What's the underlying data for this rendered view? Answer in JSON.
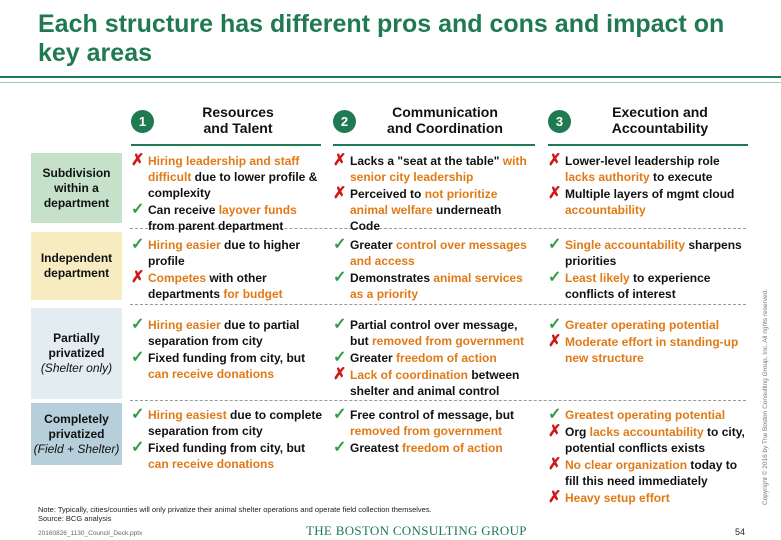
{
  "title": "Each structure has different pros and cons and impact on key areas",
  "colors": {
    "accent": "#1f7a52",
    "pro": "#2ea043",
    "con": "#d01818",
    "highlight": "#e07a16"
  },
  "columns": [
    {
      "number": "1",
      "title_line1": "Resources",
      "title_line2": "and Talent"
    },
    {
      "number": "2",
      "title_line1": "Communication",
      "title_line2": "and Coordination"
    },
    {
      "number": "3",
      "title_line1": "Execution and",
      "title_line2": "Accountability"
    }
  ],
  "rows": [
    {
      "label_line1": "Subdivision",
      "label_line2": "within a",
      "label_line3": "department",
      "bg": "#c6e1c9",
      "cells": [
        [
          {
            "mark": "✗",
            "type": "no",
            "hl": "Hiring leadership and staff difficult",
            "rest": " due to lower profile & complexity"
          },
          {
            "mark": "✓",
            "type": "ok",
            "pre": "Can receive ",
            "hl": "layover funds",
            "rest": " from parent department"
          }
        ],
        [
          {
            "mark": "✗",
            "type": "no",
            "pre": "Lacks a \"seat at the table\" ",
            "hl": "with senior  city leadership"
          },
          {
            "mark": "✗",
            "type": "no",
            "pre": "Perceived to ",
            "hl": "not prioritize animal welfare",
            "rest": " underneath Code"
          }
        ],
        [
          {
            "mark": "✗",
            "type": "no",
            "pre": "Lower-level leadership role ",
            "hl": "lacks authority",
            "rest": " to execute"
          },
          {
            "mark": "✗",
            "type": "no",
            "pre": "Multiple layers of mgmt cloud ",
            "hl": "accountability"
          }
        ]
      ]
    },
    {
      "label_line1": "Independent",
      "label_line2": "department",
      "bg": "#f7ecc0",
      "cells": [
        [
          {
            "mark": "✓",
            "type": "ok",
            "hl": "Hiring easier",
            "rest": " due to higher profile"
          },
          {
            "mark": "✗",
            "type": "no",
            "hl": "Competes",
            "rest": " with other departments ",
            "hl2": "for budget"
          }
        ],
        [
          {
            "mark": "✓",
            "type": "ok",
            "pre": "Greater ",
            "hl": "control over messages and access"
          },
          {
            "mark": "✓",
            "type": "ok",
            "pre": "Demonstrates ",
            "hl": "animal services as a priority"
          }
        ],
        [
          {
            "mark": "✓",
            "type": "ok",
            "hl": "Single accountability",
            "rest": " sharpens priorities"
          },
          {
            "mark": "✓",
            "type": "ok",
            "hl": "Least likely",
            "rest": " to experience conflicts of interest"
          }
        ]
      ]
    },
    {
      "label_line1": "Partially",
      "label_line2": "privatized",
      "label_sub": "(Shelter only)",
      "bg": "#e3ecf1",
      "cells": [
        [
          {
            "mark": "✓",
            "type": "ok",
            "hl": "Hiring easier",
            "rest": " due to partial separation from city"
          },
          {
            "mark": "✓",
            "type": "ok",
            "pre": "Fixed funding from city, but ",
            "hl": "can receive donations"
          }
        ],
        [
          {
            "mark": "✓",
            "type": "ok",
            "pre": "Partial control over message, but ",
            "hl": "removed from government"
          },
          {
            "mark": "✓",
            "type": "ok",
            "pre": "Greater ",
            "hl": "freedom of action"
          },
          {
            "mark": "✗",
            "type": "no",
            "hl": "Lack of coordination",
            "rest": " between shelter and animal control"
          }
        ],
        [
          {
            "mark": "✓",
            "type": "ok",
            "hl": "Greater operating potential"
          },
          {
            "mark": "✗",
            "type": "no",
            "hl": "Moderate effort in standing-up new structure"
          }
        ]
      ]
    },
    {
      "label_line1": "Completely",
      "label_line2": "privatized",
      "label_sub": "(Field + Shelter)",
      "bg": "#b7cfdb",
      "cells": [
        [
          {
            "mark": "✓",
            "type": "ok",
            "hl": "Hiring easiest",
            "rest": " due to complete separation from city"
          },
          {
            "mark": "✓",
            "type": "ok",
            "pre": "Fixed funding from city, but ",
            "hl": "can receive donations"
          }
        ],
        [
          {
            "mark": "✓",
            "type": "ok",
            "pre": "Free control of message, but ",
            "hl": "removed from government"
          },
          {
            "mark": "✓",
            "type": "ok",
            "pre": "Greatest ",
            "hl": "freedom of action"
          }
        ],
        [
          {
            "mark": "✓",
            "type": "ok",
            "hl": "Greatest operating potential"
          },
          {
            "mark": "✗",
            "type": "no",
            "pre": "Org ",
            "hl": "lacks accountability",
            "rest": " to city, potential conflicts exists"
          },
          {
            "mark": "✗",
            "type": "no",
            "hl": "No clear organization",
            "rest": " today to fill this need immediately"
          },
          {
            "mark": "✗",
            "type": "no",
            "hl": "Heavy setup effort"
          }
        ]
      ]
    }
  ],
  "note_line1": "Note: Typically, cities/counties will only privatize their animal shelter operations and operate field collection themselves.",
  "note_line2": "Source: BCG analysis",
  "footer_file": "20160826_1130_Council_Deck.pptx",
  "footer_logo": "THE BOSTON CONSULTING GROUP",
  "page_number": "54",
  "copyright": "Copyright © 2016 by The Boston Consulting Group, Inc. All rights reserved."
}
